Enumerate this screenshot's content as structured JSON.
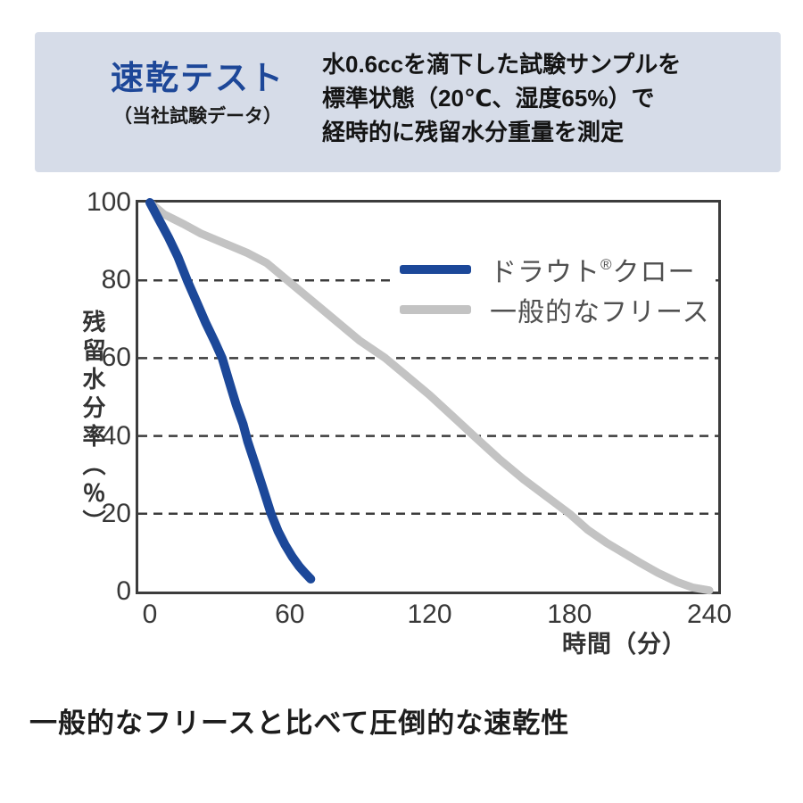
{
  "header": {
    "title": "速乾テスト",
    "subtitle": "（当社試験データ）",
    "description_lines": [
      "水0.6ccを滴下した試験サンプルを",
      "標準状態（20℃、湿度65%）で",
      "経時的に残留水分重量を測定"
    ]
  },
  "colors": {
    "header_bg": "#d6dce8",
    "title_blue": "#1d4798",
    "axis": "#3c3c3c",
    "tick_text": "#383838",
    "legend_text": "#505050",
    "draut_blue": "#1c4899",
    "fleece_gray": "#c3c3c3"
  },
  "chart_data": {
    "type": "line",
    "title": "",
    "xlabel": "時間（分）",
    "ylabel": "残留水分率（％）",
    "xlim": [
      0,
      240
    ],
    "ylim": [
      0,
      100
    ],
    "xticks": [
      0,
      60,
      120,
      180,
      240
    ],
    "yticks": [
      0,
      20,
      40,
      60,
      80,
      100
    ],
    "grid": "horizontal dashed lines at y = 20, 40, 60, 80",
    "legend_position": "top-right inside plot area",
    "series": [
      {
        "name": "ドラウト®クロー",
        "color": "#1c4899",
        "points": [
          [
            0,
            100
          ],
          [
            4,
            95.5
          ],
          [
            8,
            91
          ],
          [
            12,
            86
          ],
          [
            16,
            80
          ],
          [
            20,
            74.5
          ],
          [
            24,
            69
          ],
          [
            28,
            64
          ],
          [
            31,
            60
          ],
          [
            34,
            54
          ],
          [
            37,
            48
          ],
          [
            40,
            43
          ],
          [
            42,
            38.5
          ],
          [
            45,
            33
          ],
          [
            48,
            27.5
          ],
          [
            52,
            20
          ],
          [
            55,
            15.5
          ],
          [
            58,
            12
          ],
          [
            61,
            9
          ],
          [
            64,
            6.5
          ],
          [
            66.5,
            4.8
          ],
          [
            69,
            3.2
          ]
        ]
      },
      {
        "name": "一般的なフリース",
        "color": "#c3c3c3",
        "points": [
          [
            0,
            100
          ],
          [
            3,
            98.5
          ],
          [
            6,
            97
          ],
          [
            10,
            95.8
          ],
          [
            15,
            94.3
          ],
          [
            22,
            92
          ],
          [
            30,
            90
          ],
          [
            42,
            87
          ],
          [
            50,
            84.5
          ],
          [
            59,
            80
          ],
          [
            70,
            74.5
          ],
          [
            80,
            69.5
          ],
          [
            90,
            64.5
          ],
          [
            101,
            60
          ],
          [
            110,
            55.5
          ],
          [
            120,
            50.5
          ],
          [
            130,
            45
          ],
          [
            139,
            40
          ],
          [
            150,
            34
          ],
          [
            160,
            29
          ],
          [
            170,
            24.5
          ],
          [
            180,
            20
          ],
          [
            188,
            15.8
          ],
          [
            196,
            12.5
          ],
          [
            203,
            10
          ],
          [
            210,
            7.5
          ],
          [
            218,
            4.8
          ],
          [
            226,
            2.5
          ],
          [
            233,
            1
          ],
          [
            240,
            0.3
          ]
        ]
      }
    ]
  },
  "legend": {
    "draut": {
      "pre": "ドラウト",
      "reg": "®",
      "post": "クロー"
    },
    "fleece": "一般的なフリース"
  },
  "caption": "一般的なフリースと比べて圧倒的な速乾性"
}
